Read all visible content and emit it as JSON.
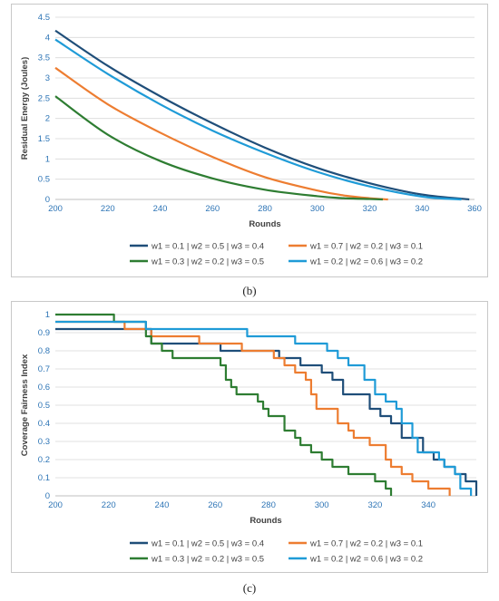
{
  "chart_data": [
    {
      "type": "line",
      "panel_label": "(b)",
      "xlabel": "Rounds",
      "ylabel": "Residual Energy (Joules)",
      "xlim": [
        200,
        360
      ],
      "ylim": [
        0,
        4.5
      ],
      "xticks": [
        "200",
        "220",
        "240",
        "260",
        "280",
        "300",
        "320",
        "340",
        "360"
      ],
      "yticks": [
        "0",
        "0.5",
        "1",
        "1.5",
        "2",
        "2.5",
        "3",
        "3.5",
        "4",
        "4.5"
      ],
      "grid": "horizontal",
      "legend_position": "bottom",
      "series": [
        {
          "name": "w1 = 0.1 | w2 = 0.5 | w3 = 0.4",
          "color": "#1f4e79",
          "x": [
            200,
            220,
            240,
            260,
            280,
            300,
            320,
            340,
            358
          ],
          "y": [
            4.17,
            3.3,
            2.55,
            1.88,
            1.28,
            0.78,
            0.4,
            0.12,
            0
          ]
        },
        {
          "name": "w1 = 0.7 | w2 = 0.2 | w3 = 0.1",
          "color": "#ed7d31",
          "x": [
            200,
            220,
            240,
            260,
            280,
            300,
            310,
            320,
            327
          ],
          "y": [
            3.25,
            2.35,
            1.65,
            1.05,
            0.55,
            0.22,
            0.1,
            0.03,
            0
          ]
        },
        {
          "name": "w1 = 0.3 | w2 = 0.2 | w3 = 0.5",
          "color": "#2e7d32",
          "x": [
            200,
            220,
            240,
            260,
            280,
            300,
            310,
            320,
            325
          ],
          "y": [
            2.55,
            1.6,
            0.95,
            0.52,
            0.24,
            0.08,
            0.03,
            0.01,
            0
          ]
        },
        {
          "name": "w1 = 0.2 | w2 = 0.6 | w3 = 0.2",
          "color": "#1f9bd7",
          "x": [
            200,
            220,
            240,
            260,
            280,
            300,
            320,
            340,
            355
          ],
          "y": [
            3.95,
            3.1,
            2.35,
            1.7,
            1.15,
            0.68,
            0.32,
            0.07,
            0
          ]
        }
      ]
    },
    {
      "type": "line",
      "panel_label": "(c)",
      "xlabel": "Rounds",
      "ylabel": "Coverage Fairness Index",
      "xlim": [
        200,
        358
      ],
      "ylim": [
        0,
        1
      ],
      "xticks": [
        "200",
        "220",
        "240",
        "260",
        "280",
        "300",
        "320",
        "340"
      ],
      "yticks": [
        "0",
        "0.1",
        "0.2",
        "0.3",
        "0.4",
        "0.5",
        "0.6",
        "0.7",
        "0.8",
        "0.9",
        "1"
      ],
      "grid": "horizontal",
      "legend_position": "bottom",
      "series": [
        {
          "name": "w1 = 0.1 | w2 = 0.5 | w3 = 0.4",
          "color": "#1f4e79",
          "x": [
            200,
            232,
            236,
            258,
            262,
            272,
            284,
            288,
            292,
            296,
            300,
            304,
            308,
            314,
            318,
            322,
            326,
            330,
            334,
            338,
            342,
            346,
            350,
            354,
            358
          ],
          "y": [
            0.92,
            0.92,
            0.84,
            0.84,
            0.8,
            0.8,
            0.76,
            0.76,
            0.72,
            0.72,
            0.68,
            0.64,
            0.56,
            0.56,
            0.48,
            0.44,
            0.4,
            0.32,
            0.32,
            0.24,
            0.2,
            0.16,
            0.12,
            0.08,
            0
          ]
        },
        {
          "name": "w1 = 0.7 | w2 = 0.2 | w3 = 0.1",
          "color": "#ed7d31",
          "x": [
            200,
            224,
            226,
            234,
            236,
            250,
            254,
            266,
            270,
            278,
            282,
            286,
            290,
            294,
            296,
            298,
            304,
            306,
            310,
            312,
            318,
            320,
            324,
            326,
            330,
            334,
            336,
            340,
            346,
            348
          ],
          "y": [
            0.96,
            0.96,
            0.92,
            0.92,
            0.88,
            0.88,
            0.84,
            0.84,
            0.8,
            0.8,
            0.76,
            0.72,
            0.68,
            0.64,
            0.56,
            0.48,
            0.48,
            0.4,
            0.36,
            0.32,
            0.28,
            0.28,
            0.2,
            0.16,
            0.12,
            0.08,
            0.08,
            0.04,
            0.04,
            0
          ]
        },
        {
          "name": "w1 = 0.3 | w2 = 0.2 | w3 = 0.5",
          "color": "#2e7d32",
          "x": [
            200,
            220,
            222,
            230,
            234,
            236,
            240,
            244,
            254,
            262,
            264,
            266,
            268,
            274,
            276,
            278,
            280,
            284,
            286,
            290,
            292,
            296,
            300,
            304,
            310,
            318,
            320,
            324,
            326
          ],
          "y": [
            1.0,
            1.0,
            0.96,
            0.96,
            0.88,
            0.84,
            0.8,
            0.76,
            0.76,
            0.72,
            0.64,
            0.6,
            0.56,
            0.56,
            0.52,
            0.48,
            0.44,
            0.44,
            0.36,
            0.32,
            0.28,
            0.24,
            0.2,
            0.16,
            0.12,
            0.12,
            0.08,
            0.04,
            0
          ]
        },
        {
          "name": "w1 = 0.2 | w2 = 0.6 | w3 = 0.2",
          "color": "#1f9bd7",
          "x": [
            200,
            230,
            234,
            268,
            272,
            282,
            290,
            296,
            302,
            306,
            310,
            316,
            320,
            324,
            328,
            330,
            334,
            336,
            342,
            344,
            346,
            350,
            352,
            356
          ],
          "y": [
            0.96,
            0.96,
            0.92,
            0.92,
            0.88,
            0.88,
            0.84,
            0.84,
            0.8,
            0.76,
            0.72,
            0.64,
            0.56,
            0.52,
            0.48,
            0.4,
            0.32,
            0.24,
            0.24,
            0.2,
            0.16,
            0.12,
            0.04,
            0
          ]
        }
      ]
    }
  ]
}
